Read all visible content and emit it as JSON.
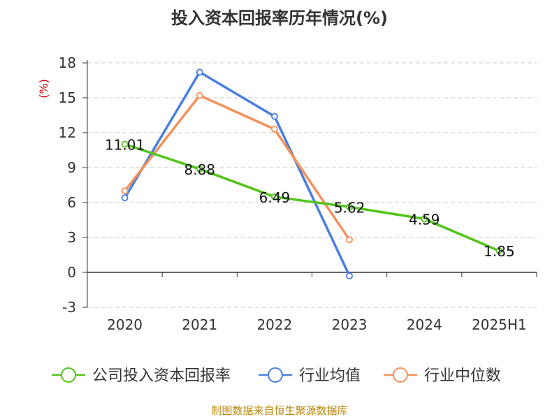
{
  "chart_data": {
    "type": "line",
    "title": "投入资本回报率历年情况(%)",
    "ylabel": "(%)",
    "xlabel": "",
    "categories": [
      "2020",
      "2021",
      "2022",
      "2023",
      "2024",
      "2025H1"
    ],
    "ylim": [
      -3,
      18
    ],
    "yticks": [
      -3,
      0,
      3,
      6,
      9,
      12,
      15,
      18
    ],
    "grid": true,
    "legend": "bottom",
    "series": [
      {
        "name": "公司投入资本回报率",
        "color": "#52c41a",
        "values": [
          11.01,
          8.88,
          6.49,
          5.62,
          4.59,
          1.85
        ],
        "labels": [
          "11.01",
          "8.88",
          "6.49",
          "5.62",
          "4.59",
          "1.85"
        ]
      },
      {
        "name": "行业均值",
        "color": "#4a7fe0",
        "values": [
          6.4,
          17.2,
          13.4,
          -0.3,
          null,
          null
        ]
      },
      {
        "name": "行业中位数",
        "color": "#f5905a",
        "values": [
          7.0,
          15.2,
          12.3,
          2.8,
          null,
          null
        ]
      }
    ],
    "source": "制图数据来自恒生聚源数据库"
  }
}
